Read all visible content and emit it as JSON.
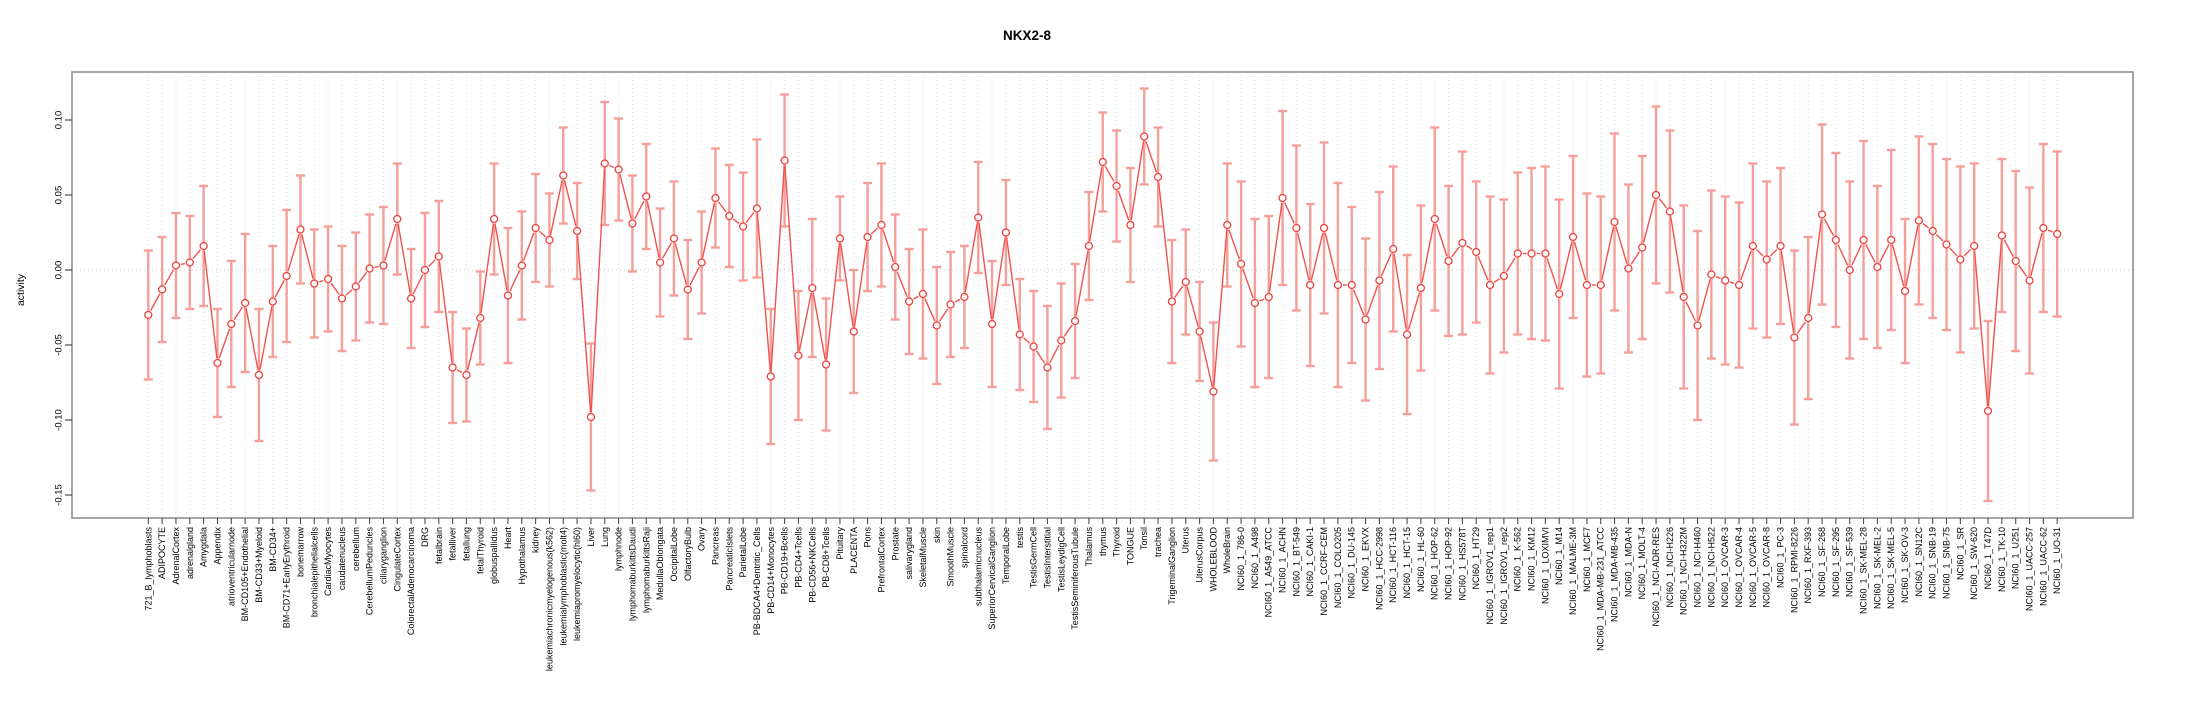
{
  "header": {
    "title": "NKX2-8"
  },
  "axes": {
    "y_label": "activity",
    "y_tick_labels": [
      "0.10",
      "0.05",
      "0.00",
      "-0.05",
      "-0.10",
      "-0.15"
    ]
  },
  "colors": {
    "marker": "#e9413d",
    "line": "#ef5350",
    "error_bar": "#f59f9b",
    "grid": "#dcdcdc",
    "zero_line": "#c8c8c8",
    "box_border": "#909090",
    "tick": "#4d4d4d",
    "text": "#000000",
    "background": "#ffffff"
  },
  "chart_data": {
    "type": "line",
    "title": "NKX2-8",
    "xlabel": "",
    "ylabel": "activity",
    "ylim": [
      -0.165,
      0.132
    ],
    "yticks": [
      0.1,
      0.05,
      0.0,
      -0.05,
      -0.1,
      -0.15
    ],
    "grid": {
      "vertical_dotted_per_category": true,
      "horizontal_dotted_zero_line": true
    },
    "legend": "none",
    "marker": "open-circle",
    "error_bars": "symmetric, light red with caps",
    "categories": [
      "721_B_lymphoblasts",
      "ADIPOCYTE",
      "AdrenalCortex",
      "adrenalgland",
      "Amygdala",
      "Appendix",
      "atrioventricularnode",
      "BM-CD105+Endothelial",
      "BM-CD33+Myeloid",
      "BM-CD34+",
      "BM-CD71+EarlyErythroid",
      "bonemarrow",
      "bronchialepithelialcells",
      "CardiacMyocytes",
      "caudatenucleus",
      "cerebellum",
      "CerebellumPeduncles",
      "ciliaryganglion",
      "CingulateCortex",
      "ColorectalAdenocarcinoma",
      "DRG",
      "fetalbrain",
      "fetalliver",
      "fetallung",
      "fetalThyroid",
      "globuspallidus",
      "Heart",
      "Hypothalamus",
      "kidney",
      "leukemiachronicmyelogenous(k562)",
      "leukemialymphoblastic(molt4)",
      "leukemiapromyelocytic(hl60)",
      "Liver",
      "Lung",
      "lymphnode",
      "lymphomaburkittsDaudi",
      "lymphomaburkittsRaji",
      "MedullaOblongata",
      "OccipitalLobe",
      "OlfactoryBulb",
      "Ovary",
      "Pancreas",
      "PancreaticIslets",
      "ParietalLobe",
      "PB-BDCA4+Dentritic_Cells",
      "PB-CD14+Monocytes",
      "PB-CD19+Bcells",
      "PB-CD4+Tcells",
      "PB-CD56+NKCells",
      "PB-CD8+Tcells",
      "Pituitary",
      "PLACENTA",
      "Pons",
      "PrefrontalCortex",
      "Prostate",
      "salivarygland",
      "SkeletalMuscle",
      "skin",
      "SmoothMuscle",
      "spinalcord",
      "subthalamicnucleus",
      "SuperiorCervicalGanglion",
      "TemporalLobe",
      "testis",
      "TestisGermCell",
      "TestisInterstitial",
      "TestisLeydigCell",
      "TestisSeminiferousTubule",
      "Thalamus",
      "thymus",
      "Thyroid",
      "TONGUE",
      "Tonsil",
      "trachea",
      "TrigeminalGanglion",
      "Uterus",
      "UterusCorpus",
      "WHOLEBLOOD",
      "WholeBrain",
      "NCI60_1_786-0",
      "NCI60_1_A498",
      "NCI60_1_A549_ATCC",
      "NCI60_1_ACHN",
      "NCI60_1_BT-549",
      "NCI60_1_CAKI-1",
      "NCI60_1_CCRF-CEM",
      "NCI60_1_COLO205",
      "NCI60_1_DU-145",
      "NCI60_1_EKVX",
      "NCI60_1_HCC-2998",
      "NCI60_1_HCT-116",
      "NCI60_1_HCT-15",
      "NCI60_1_HL-60",
      "NCI60_1_HOP-62",
      "NCI60_1_HOP-92",
      "NCI60_1_HS578T",
      "NCI60_1_HT29",
      "NCI60_1_IGROV1_rep1",
      "NCI60_1_IGROV1_rep2",
      "NCI60_1_K-562",
      "NCI60_1_KM12",
      "NCI60_1_LOXIMVI",
      "NCI60_1_M14",
      "NCI60_1_MALME-3M",
      "NCI60_1_MCF7",
      "NCI60_1_MDA-MB-231_ATCC",
      "NCI60_1_MDA-MB-435",
      "NCI60_1_MDA-N",
      "NCI60_1_MOLT-4",
      "NCI60_1_NCI-ADR-RES",
      "NCI60_1_NCI-H226",
      "NCI60_1_NCI-H322M",
      "NCI60_1_NCI-H460",
      "NCI60_1_NCI-H522",
      "NCI60_1_OVCAR-3",
      "NCI60_1_OVCAR-4",
      "NCI60_1_OVCAR-5",
      "NCI60_1_OVCAR-8",
      "NCI60_1_PC-3",
      "NCI60_1_RPMI-8226",
      "NCI60_1_RXF-393",
      "NCI60_1_SF-268",
      "NCI60_1_SF-295",
      "NCI60_1_SF-539",
      "NCI60_1_SK-MEL-28",
      "NCI60_1_SK-MEL-2",
      "NCI60_1_SK-MEL-5",
      "NCI60_1_SK-OV-3",
      "NCI60_1_SN12C",
      "NCI60_1_SNB-19",
      "NCI60_1_SNB-75",
      "NCI60_1_SR",
      "NCI60_1_SW-620",
      "NCI60_1_T47D",
      "NCI60_1_TK-10",
      "NCI60_1_U251",
      "NCI60_1_UACC-257",
      "NCI60_1_UACC-62",
      "NCI60_1_UO-31"
    ],
    "series": [
      {
        "name": "activity",
        "values": [
          -0.03,
          -0.013,
          0.003,
          0.005,
          0.016,
          -0.062,
          -0.036,
          -0.022,
          -0.07,
          -0.021,
          -0.004,
          0.027,
          -0.009,
          -0.006,
          -0.019,
          -0.011,
          0.001,
          0.003,
          0.034,
          -0.019,
          0.0,
          0.009,
          -0.065,
          -0.07,
          -0.032,
          0.034,
          -0.017,
          0.003,
          0.028,
          0.02,
          0.063,
          0.026,
          -0.098,
          0.071,
          0.067,
          0.031,
          0.049,
          0.005,
          0.021,
          -0.013,
          0.005,
          0.048,
          0.036,
          0.029,
          0.041,
          -0.071,
          0.073,
          -0.057,
          -0.012,
          -0.063,
          0.021,
          -0.041,
          0.022,
          0.03,
          0.002,
          -0.021,
          -0.016,
          -0.037,
          -0.023,
          -0.018,
          0.035,
          -0.036,
          0.025,
          -0.043,
          -0.051,
          -0.065,
          -0.047,
          -0.034,
          0.016,
          0.072,
          0.056,
          0.03,
          0.089,
          0.062,
          -0.021,
          -0.008,
          -0.041,
          -0.081,
          0.03,
          0.004,
          -0.022,
          -0.018,
          0.048,
          0.028,
          -0.01,
          0.028,
          -0.01,
          -0.01,
          -0.033,
          -0.007,
          0.014,
          -0.043,
          -0.012,
          0.034,
          0.006,
          0.018,
          0.012,
          -0.01,
          -0.004,
          0.011,
          0.011,
          0.011,
          -0.016,
          0.022,
          -0.01,
          -0.01,
          0.032,
          0.001,
          0.015,
          0.05,
          0.039,
          -0.018,
          -0.037,
          -0.003,
          -0.007,
          -0.01,
          0.016,
          0.007,
          0.016,
          -0.045,
          -0.032,
          0.037,
          0.02,
          0.0,
          0.02,
          0.002,
          0.02,
          -0.014,
          0.033,
          0.026,
          0.017,
          0.007,
          0.016,
          -0.094,
          0.023,
          0.006,
          -0.007,
          0.028,
          0.024
        ],
        "ci_half_width": [
          0.043,
          0.035,
          0.035,
          0.031,
          0.04,
          0.036,
          0.042,
          0.046,
          0.044,
          0.037,
          0.044,
          0.036,
          0.036,
          0.035,
          0.035,
          0.036,
          0.036,
          0.039,
          0.037,
          0.033,
          0.038,
          0.037,
          0.037,
          0.031,
          0.031,
          0.037,
          0.045,
          0.036,
          0.036,
          0.031,
          0.032,
          0.032,
          0.049,
          0.041,
          0.034,
          0.032,
          0.035,
          0.036,
          0.038,
          0.033,
          0.034,
          0.033,
          0.034,
          0.036,
          0.046,
          0.045,
          0.044,
          0.043,
          0.046,
          0.044,
          0.028,
          0.041,
          0.036,
          0.041,
          0.035,
          0.035,
          0.043,
          0.039,
          0.035,
          0.034,
          0.037,
          0.042,
          0.035,
          0.037,
          0.037,
          0.041,
          0.038,
          0.038,
          0.036,
          0.033,
          0.037,
          0.038,
          0.032,
          0.033,
          0.041,
          0.035,
          0.033,
          0.046,
          0.041,
          0.055,
          0.056,
          0.054,
          0.058,
          0.055,
          0.054,
          0.057,
          0.068,
          0.052,
          0.054,
          0.059,
          0.055,
          0.053,
          0.055,
          0.061,
          0.05,
          0.061,
          0.047,
          0.059,
          0.051,
          0.054,
          0.057,
          0.058,
          0.063,
          0.054,
          0.061,
          0.059,
          0.059,
          0.056,
          0.061,
          0.059,
          0.054,
          0.061,
          0.063,
          0.056,
          0.056,
          0.055,
          0.055,
          0.052,
          0.052,
          0.058,
          0.054,
          0.06,
          0.058,
          0.059,
          0.066,
          0.054,
          0.06,
          0.048,
          0.056,
          0.058,
          0.057,
          0.062,
          0.055,
          0.06,
          0.051,
          0.06,
          0.062,
          0.056,
          0.055
        ]
      }
    ]
  }
}
